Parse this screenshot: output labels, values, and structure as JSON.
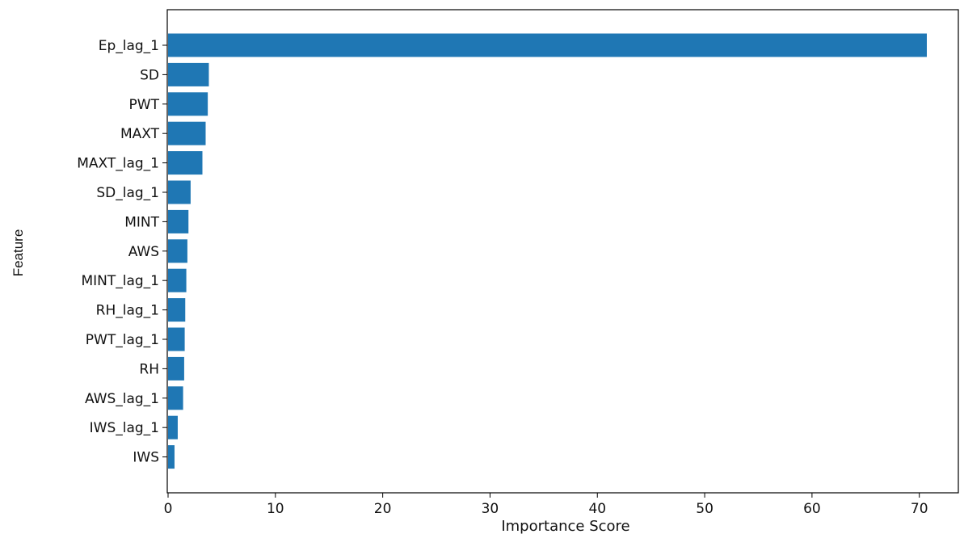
{
  "chart_data": {
    "type": "bar",
    "orientation": "horizontal",
    "categories": [
      "Ep_lag_1",
      "SD",
      "PWT",
      "MAXT",
      "MAXT_lag_1",
      "SD_lag_1",
      "MINT",
      "AWS",
      "MINT_lag_1",
      "RH_lag_1",
      "PWT_lag_1",
      "RH",
      "AWS_lag_1",
      "IWS_lag_1",
      "IWS"
    ],
    "values": [
      70.7,
      3.8,
      3.7,
      3.5,
      3.2,
      2.1,
      1.9,
      1.8,
      1.7,
      1.6,
      1.55,
      1.5,
      1.4,
      0.9,
      0.6
    ],
    "xlabel": "Importance Score",
    "ylabel": "Feature",
    "xlim": [
      0,
      74
    ],
    "xticks": [
      0,
      10,
      20,
      30,
      40,
      50,
      60,
      70
    ],
    "grid": false,
    "bar_color": "#1f77b4"
  }
}
